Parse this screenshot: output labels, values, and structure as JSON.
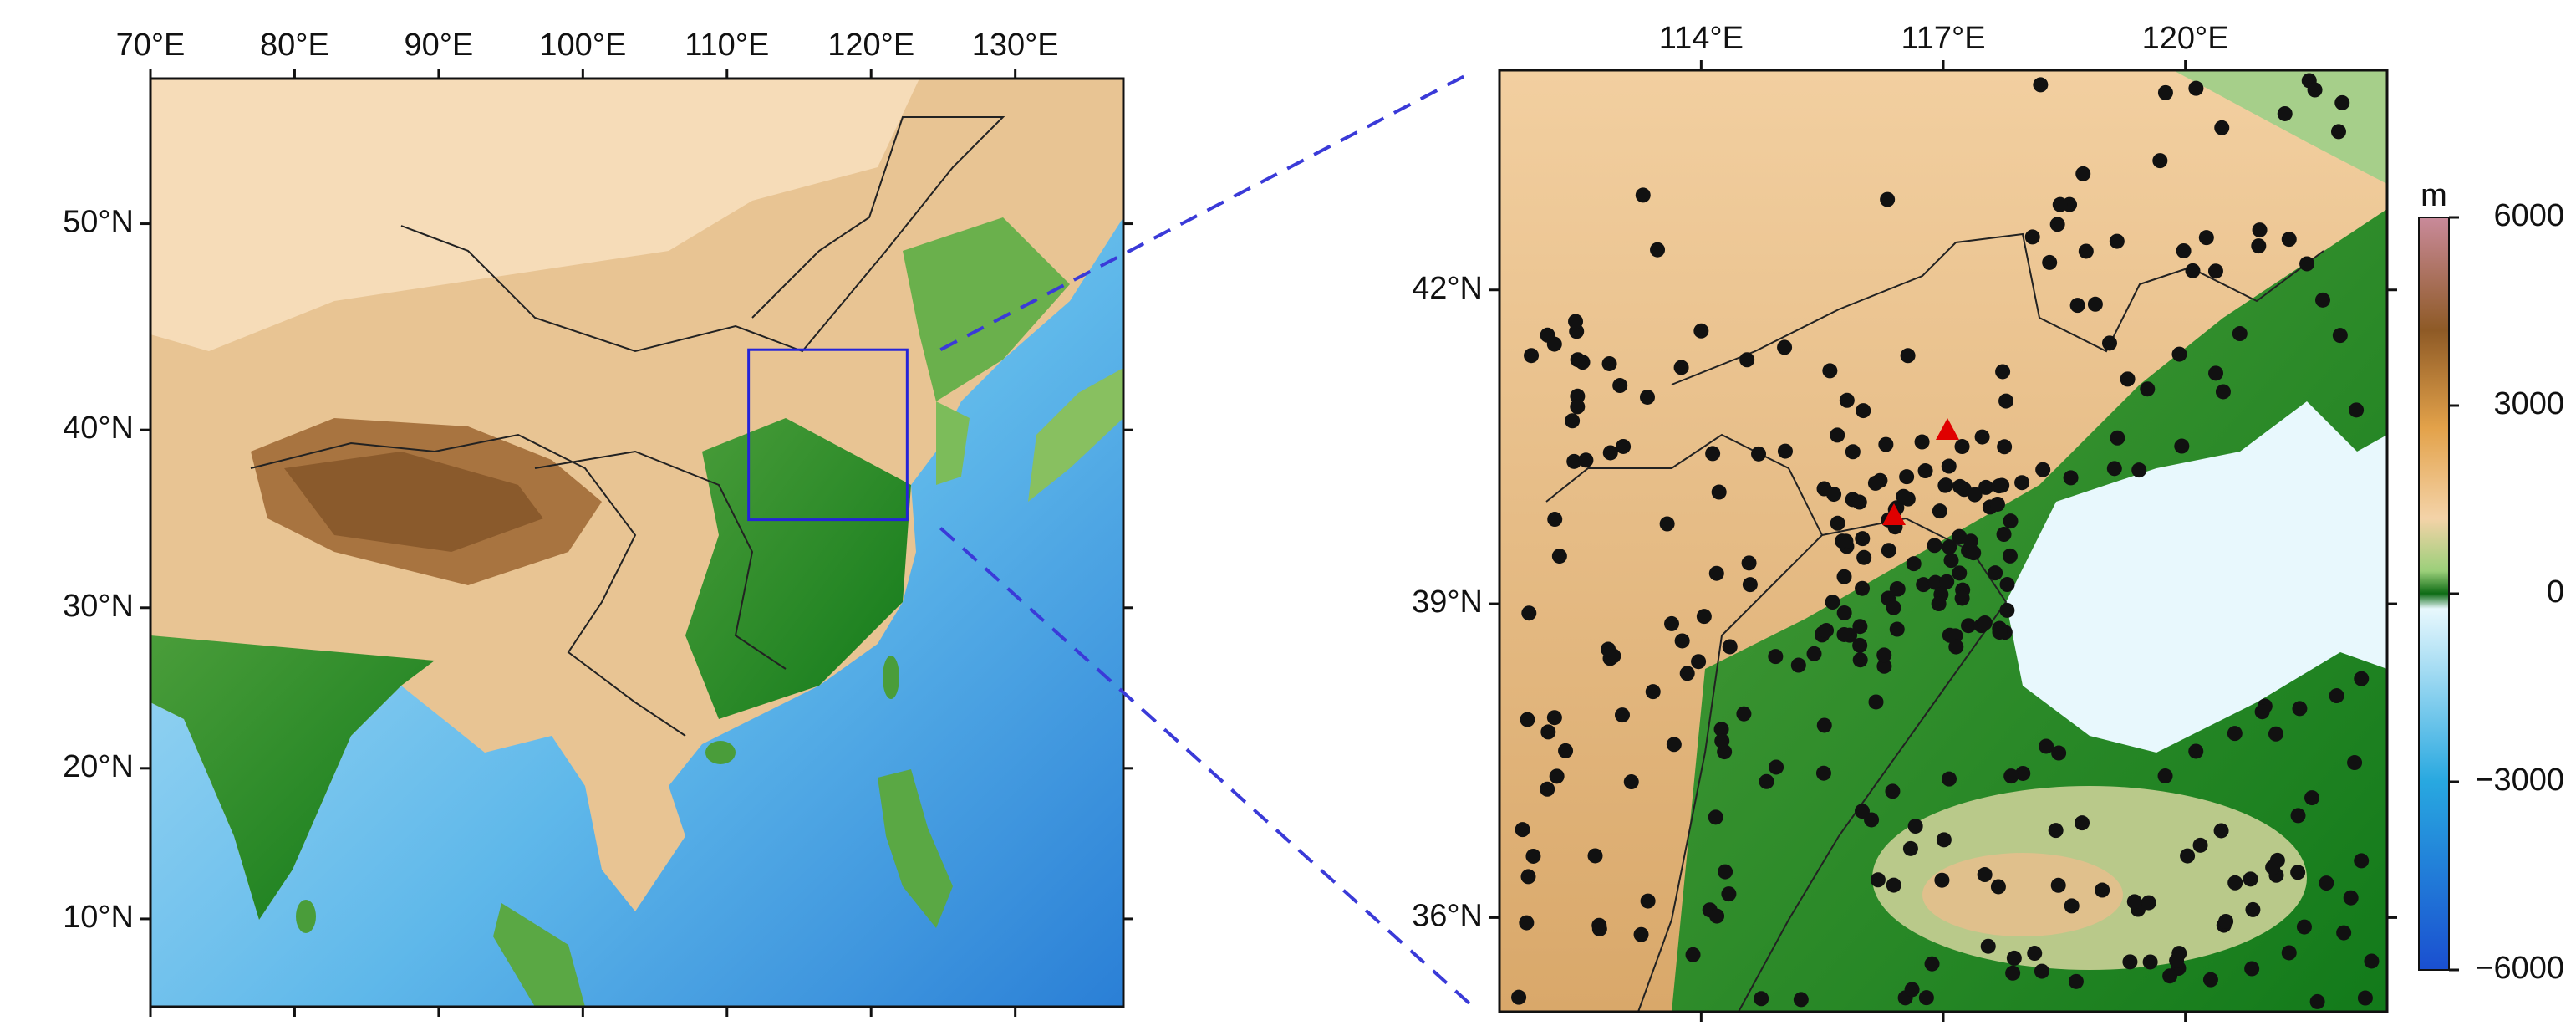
{
  "overview_map": {
    "lon_range": [
      70,
      137.5
    ],
    "lat_range": [
      4,
      56
    ],
    "xticks": [
      {
        "value": 70,
        "label": "70°E"
      },
      {
        "value": 80,
        "label": "80°E"
      },
      {
        "value": 90,
        "label": "90°E"
      },
      {
        "value": 100,
        "label": "100°E"
      },
      {
        "value": 110,
        "label": "110°E"
      },
      {
        "value": 120,
        "label": "120°E"
      },
      {
        "value": 130,
        "label": "130°E"
      }
    ],
    "yticks": [
      {
        "value": 10,
        "label": "10°N"
      },
      {
        "value": 20,
        "label": "20°N"
      },
      {
        "value": 30,
        "label": "30°N"
      },
      {
        "value": 40,
        "label": "40°N"
      },
      {
        "value": 50,
        "label": "50°N"
      }
    ]
  },
  "zoom_map": {
    "lon_range": [
      111.5,
      122.5
    ],
    "lat_range": [
      35.1,
      44.1
    ],
    "xticks": [
      {
        "value": 114,
        "label": "114°E"
      },
      {
        "value": 117,
        "label": "117°E"
      },
      {
        "value": 120,
        "label": "120°E"
      }
    ],
    "yticks": [
      {
        "value": 36,
        "label": "36°N"
      },
      {
        "value": 39,
        "label": "39°N"
      },
      {
        "value": 42,
        "label": "42°N"
      }
    ]
  },
  "colorbar": {
    "unit": "m",
    "range": [
      -6000,
      6000
    ],
    "ticks": [
      6000,
      3000,
      0,
      {
        "value": -3000,
        "label": "−3000"
      },
      {
        "value": -6000,
        "label": "−6000"
      }
    ]
  }
}
